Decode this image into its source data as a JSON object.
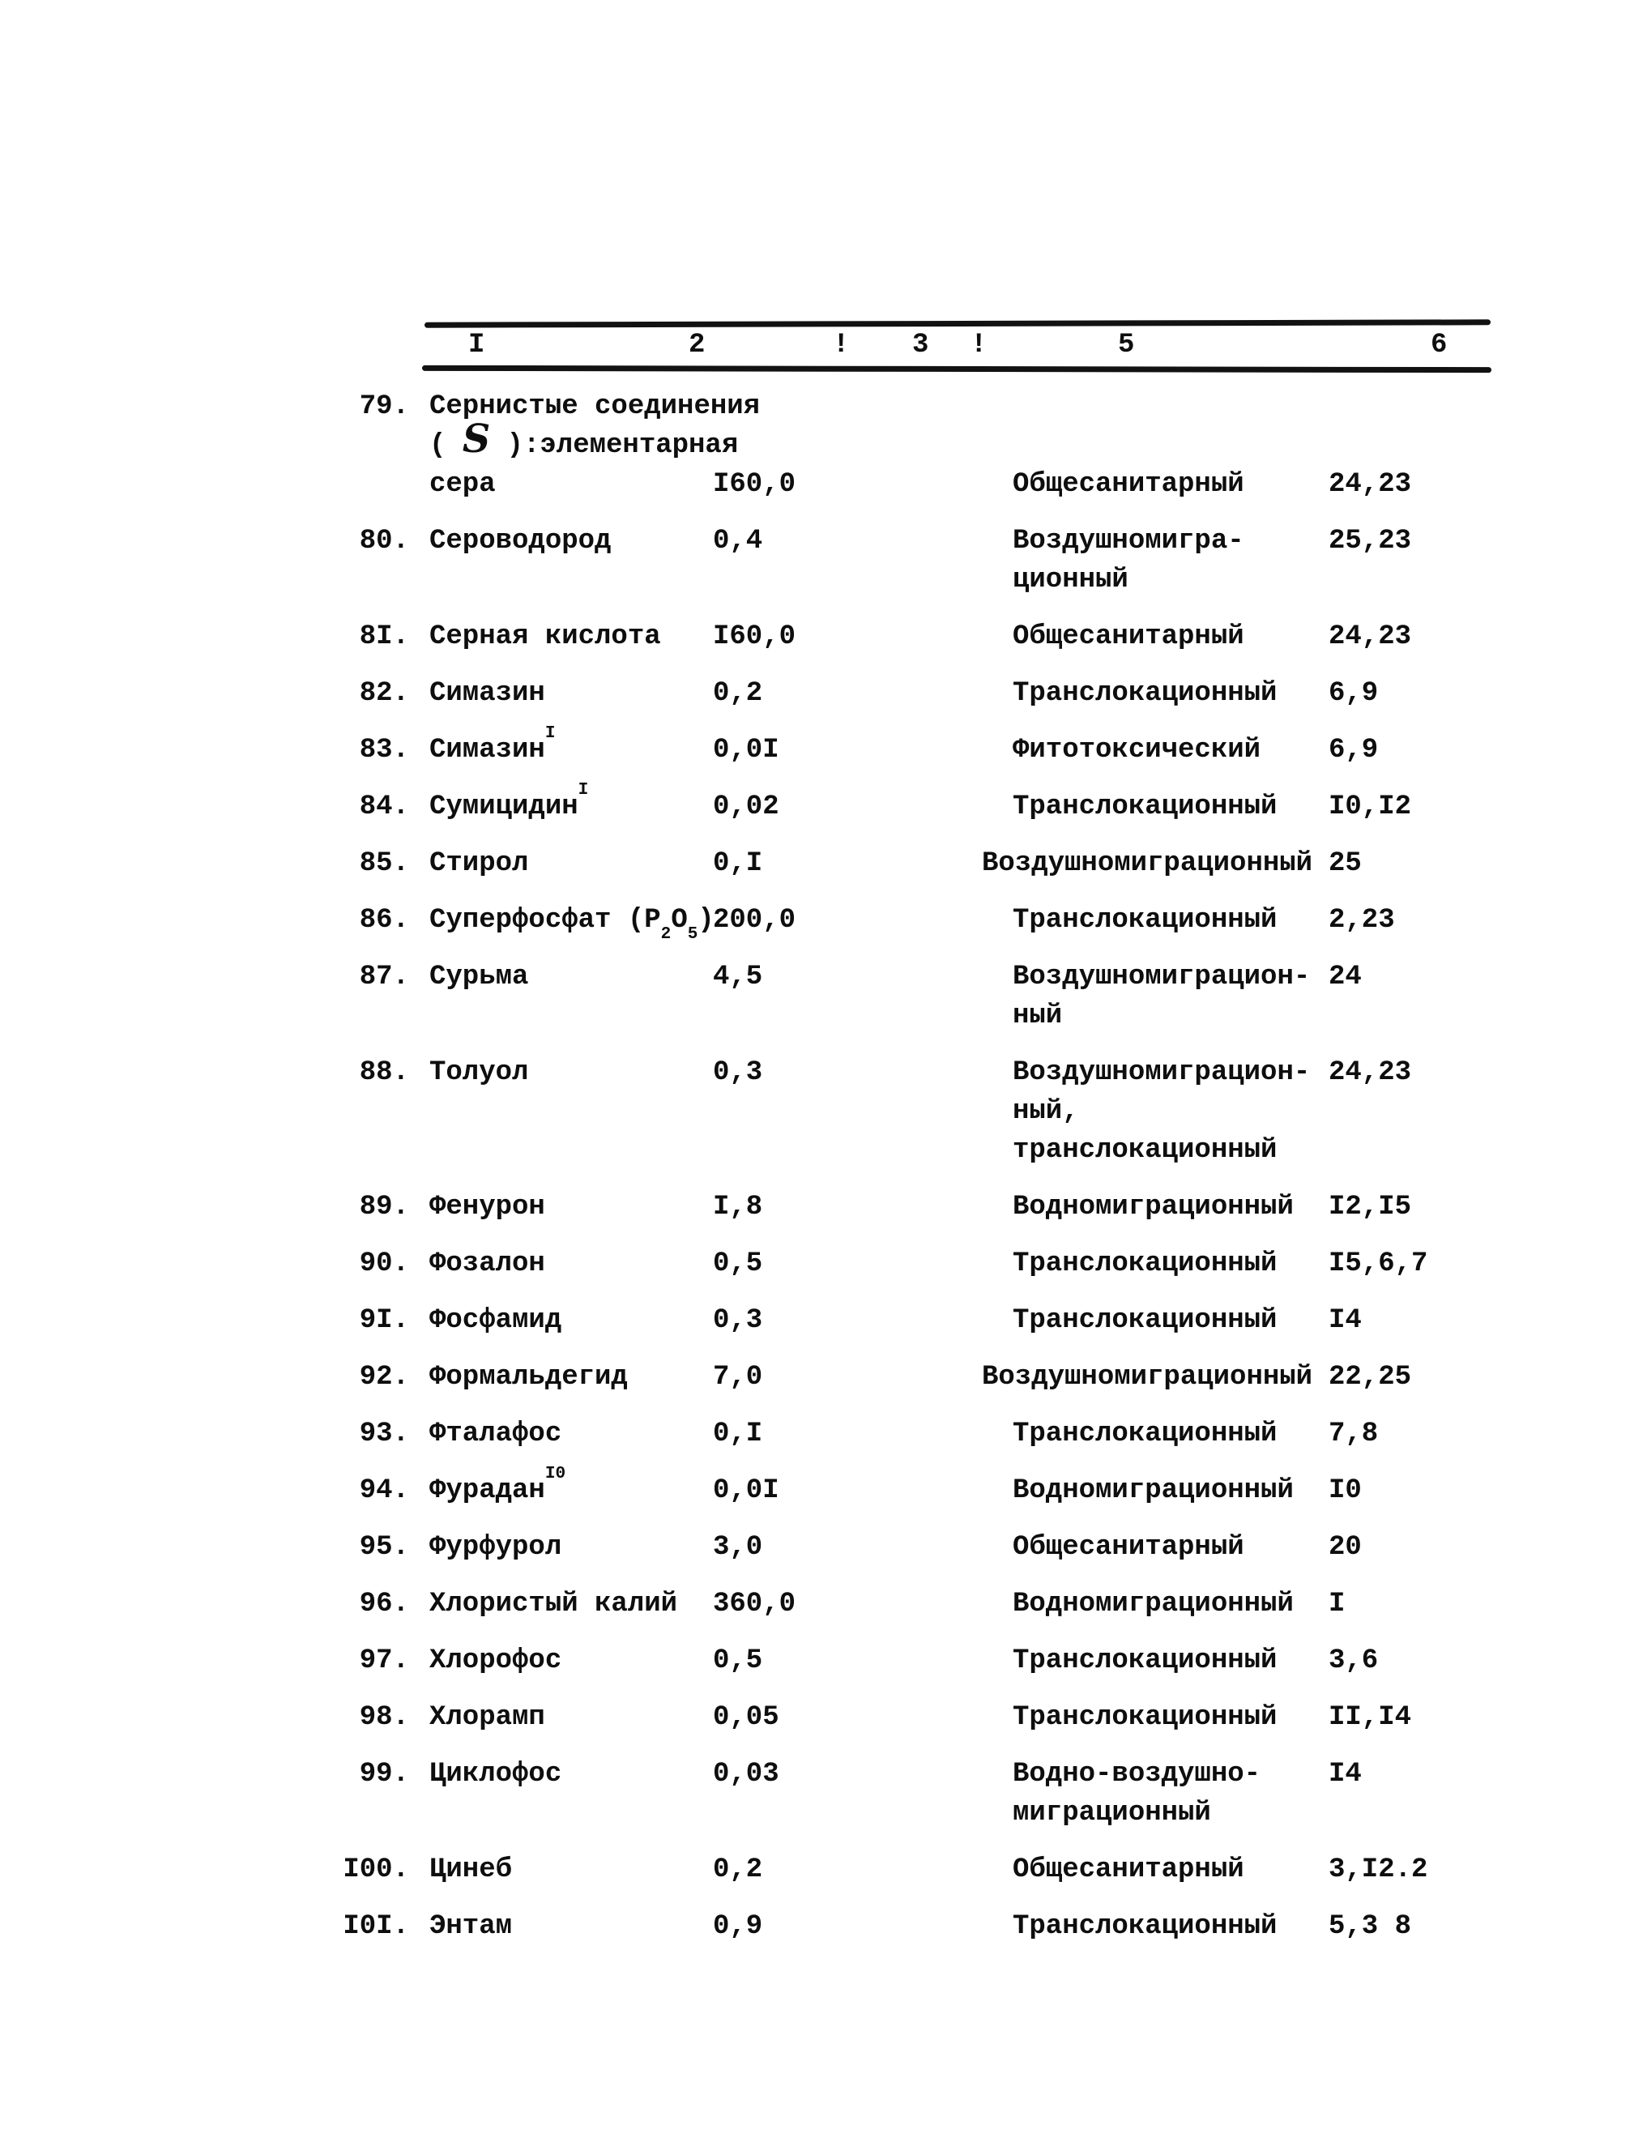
{
  "table": {
    "header": {
      "cols": [
        "I",
        "2",
        "!",
        "3",
        "!",
        "5",
        "6"
      ]
    },
    "rows": [
      {
        "num": "79.",
        "name": [
          "Сернистые соединения",
          "( *S* ):элементарная",
          "сера"
        ],
        "value": "I60,0",
        "type": [
          "Общесанитарный"
        ],
        "refs": "24,23"
      },
      {
        "num": "80.",
        "name": [
          "Сероводород"
        ],
        "value": "0,4",
        "type": [
          "Воздушномигра-",
          "ционный"
        ],
        "refs": "25,23"
      },
      {
        "num": "8I.",
        "name": [
          "Серная кислота"
        ],
        "value": "I60,0",
        "type": [
          "Общесанитарный"
        ],
        "refs": "24,23"
      },
      {
        "num": "82.",
        "name": [
          "Симазин"
        ],
        "value": "0,2",
        "type": [
          "Транслокационный"
        ],
        "refs": "6,9"
      },
      {
        "num": "83.",
        "name": [
          "Симазин^{I}"
        ],
        "value": "0,0I",
        "type": [
          "Фитотоксический"
        ],
        "refs": "6,9"
      },
      {
        "num": "84.",
        "name": [
          "Сумицидин^{I}"
        ],
        "value": "0,02",
        "type": [
          "Транслокационный"
        ],
        "refs": "I0,I2"
      },
      {
        "num": "85.",
        "name": [
          "Стирол"
        ],
        "value": "0,I",
        "type": [
          "Воздушномиграционный"
        ],
        "refs": "25"
      },
      {
        "num": "86.",
        "name": [
          "Суперфосфат (P_{2}O_{5})"
        ],
        "value": "200,0",
        "type": [
          "Транслокационный"
        ],
        "refs": "2,23"
      },
      {
        "num": "87.",
        "name": [
          "Сурьма"
        ],
        "value": "4,5",
        "type": [
          "Воздушномиграцион-",
          "ный"
        ],
        "refs": "24"
      },
      {
        "num": "88.",
        "name": [
          "Толуол"
        ],
        "value": "0,3",
        "type": [
          "Воздушномиграцион-",
          "ный,",
          "транслокационный"
        ],
        "refs": "24,23"
      },
      {
        "num": "89.",
        "name": [
          "Фенурон"
        ],
        "value": "I,8",
        "type": [
          "Водномиграционный"
        ],
        "refs": "I2,I5"
      },
      {
        "num": "90.",
        "name": [
          "Фозалон"
        ],
        "value": "0,5",
        "type": [
          "Транслокационный"
        ],
        "refs": "I5,6,7"
      },
      {
        "num": "9I.",
        "name": [
          "Фосфамид"
        ],
        "value": "0,3",
        "type": [
          "Транслокационный"
        ],
        "refs": "I4"
      },
      {
        "num": "92.",
        "name": [
          "Формальдегид"
        ],
        "value": "7,0",
        "type": [
          "Воздушномиграционный"
        ],
        "refs": "22,25"
      },
      {
        "num": "93.",
        "name": [
          "Фталафос"
        ],
        "value": "0,I",
        "type": [
          "Транслокационный"
        ],
        "refs": "7,8"
      },
      {
        "num": "94.",
        "name": [
          "Фурадан^{I0}"
        ],
        "value": "0,0I",
        "type": [
          "Водномиграционный"
        ],
        "refs": "I0"
      },
      {
        "num": "95.",
        "name": [
          "Фурфурол"
        ],
        "value": "3,0",
        "type": [
          "Общесанитарный"
        ],
        "refs": "20"
      },
      {
        "num": "96.",
        "name": [
          "Хлористый калий"
        ],
        "value": "360,0",
        "type": [
          "Водномиграционный"
        ],
        "refs": "I"
      },
      {
        "num": "97.",
        "name": [
          "Хлорофос"
        ],
        "value": "0,5",
        "type": [
          "Транслокационный"
        ],
        "refs": "3,6"
      },
      {
        "num": "98.",
        "name": [
          "Хлорамп"
        ],
        "value": "0,05",
        "type": [
          "Транслокационный"
        ],
        "refs": "II,I4"
      },
      {
        "num": "99.",
        "name": [
          "Циклофос"
        ],
        "value": "0,03",
        "type": [
          "Водно-воздушно-",
          "миграционный"
        ],
        "refs": "I4"
      },
      {
        "num": "I00.",
        "name": [
          "Цинеб"
        ],
        "value": "0,2",
        "type": [
          "Общесанитарный"
        ],
        "refs": "3,I2.2",
        "gap_before": 20
      },
      {
        "num": "I0I.",
        "name": [
          "Энтам"
        ],
        "value": "0,9",
        "type": [
          "Транслокационный"
        ],
        "refs": "5,3 8",
        "gap_before": 20
      }
    ]
  }
}
